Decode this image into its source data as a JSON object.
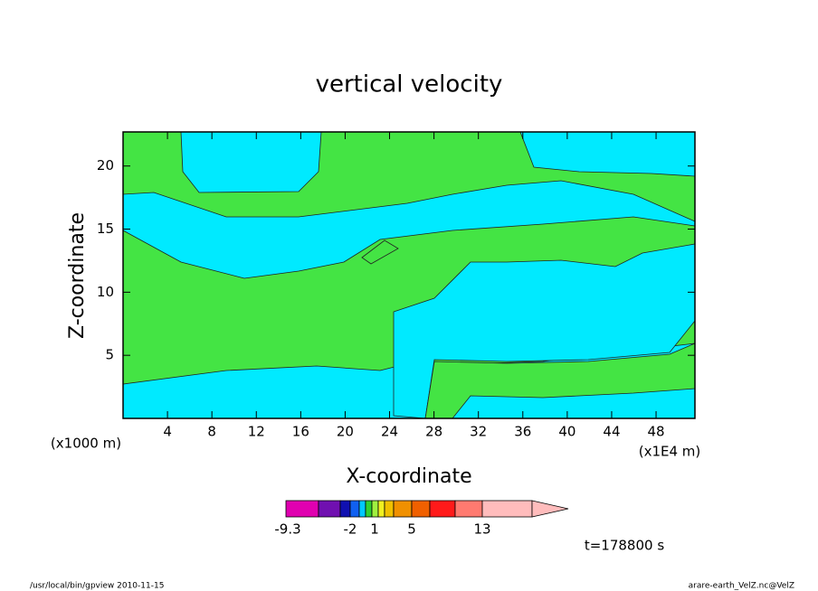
{
  "chart_data": {
    "type": "contour",
    "title": "vertical velocity",
    "xlabel": "X-coordinate",
    "ylabel": "Z-coordinate",
    "x_unit": "(x1E4 m)",
    "y_unit": "(x1000 m)",
    "xlim": [
      0,
      51.5
    ],
    "ylim": [
      0,
      22.7
    ],
    "xticks": [
      4,
      8,
      12,
      16,
      20,
      24,
      28,
      32,
      36,
      40,
      44,
      48
    ],
    "yticks": [
      5,
      10,
      15,
      20
    ],
    "region_colors": [
      "#00eaff",
      "#44e444"
    ],
    "colorbar": {
      "colors": [
        "#e000b0",
        "#7010b0",
        "#1010b0",
        "#1060f0",
        "#00c8ff",
        "#30d030",
        "#a0f040",
        "#f0f020",
        "#f0c000",
        "#f09000",
        "#f06000",
        "#ff1a1a",
        "#ff7a70",
        "#ffbcbc"
      ],
      "labels": [
        "-9.3",
        "-2",
        "1",
        "5",
        "13"
      ]
    },
    "time_label": "t=178800 s",
    "footer_left": "/usr/local/bin/gpview  2010-11-15",
    "footer_right": "arare-earth_VelZ.nc@VelZ"
  }
}
